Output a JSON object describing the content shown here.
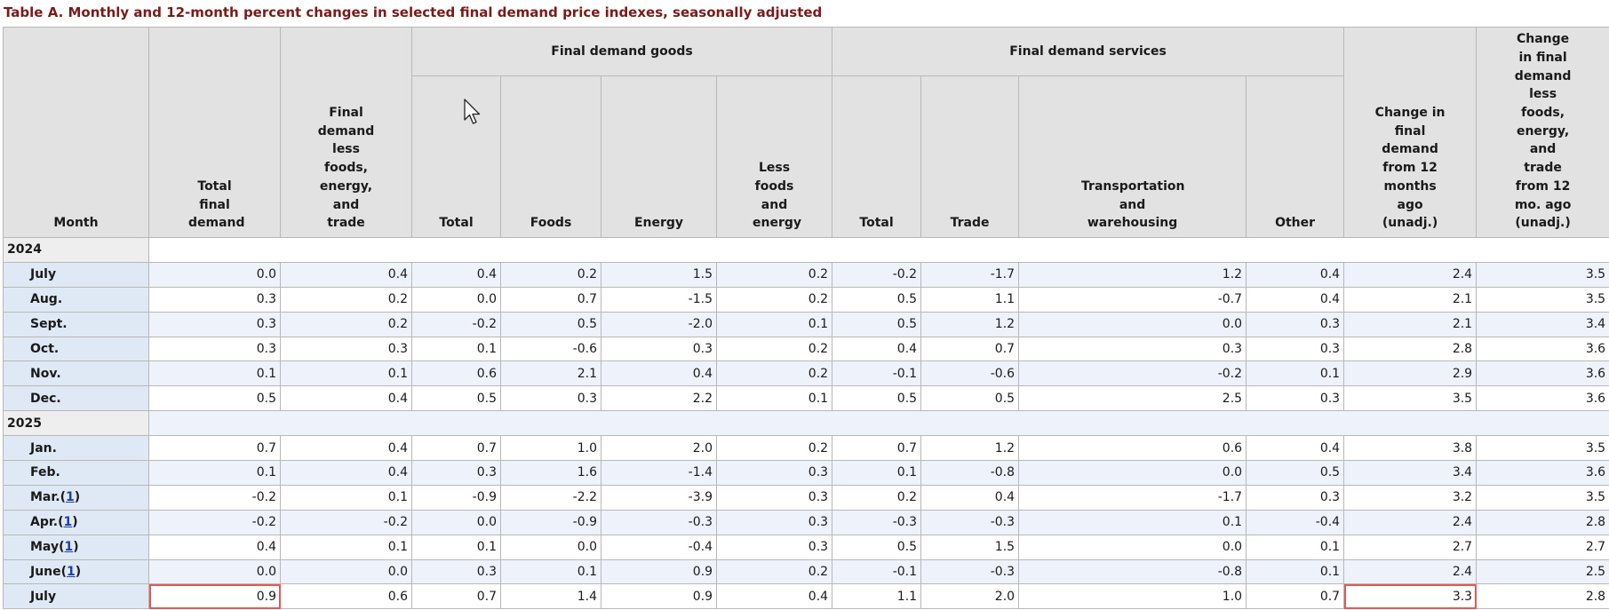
{
  "caption": "Table A. Monthly and 12-month percent changes in selected final demand price indexes, seasonally adjusted",
  "headers": {
    "month": "Month",
    "total_final_demand": "Total final demand",
    "fd_less": "Final demand less foods, energy, and trade",
    "goods_group": "Final demand goods",
    "services_group": "Final demand services",
    "goods_total": "Total",
    "goods_foods": "Foods",
    "goods_energy": "Energy",
    "goods_less": "Less foods and energy",
    "serv_total": "Total",
    "serv_trade": "Trade",
    "serv_transport": "Transportation and warehousing",
    "serv_other": "Other",
    "change12": "Change in final demand from 12 months ago (unadj.)",
    "change12_less": "Change in final demand less foods, energy, and trade from 12 mo. ago (unadj.)"
  },
  "footnote_marker": "1",
  "years": {
    "y2024": "2024",
    "y2025": "2025"
  },
  "rows": [
    {
      "month": "July",
      "fn": false,
      "v": [
        "0.0",
        "0.4",
        "0.4",
        "0.2",
        "1.5",
        "0.2",
        "-0.2",
        "-1.7",
        "1.2",
        "0.4",
        "2.4",
        "3.5"
      ]
    },
    {
      "month": "Aug.",
      "fn": false,
      "v": [
        "0.3",
        "0.2",
        "0.0",
        "0.7",
        "-1.5",
        "0.2",
        "0.5",
        "1.1",
        "-0.7",
        "0.4",
        "2.1",
        "3.5"
      ]
    },
    {
      "month": "Sept.",
      "fn": false,
      "v": [
        "0.3",
        "0.2",
        "-0.2",
        "0.5",
        "-2.0",
        "0.1",
        "0.5",
        "1.2",
        "0.0",
        "0.3",
        "2.1",
        "3.4"
      ]
    },
    {
      "month": "Oct.",
      "fn": false,
      "v": [
        "0.3",
        "0.3",
        "0.1",
        "-0.6",
        "0.3",
        "0.2",
        "0.4",
        "0.7",
        "0.3",
        "0.3",
        "2.8",
        "3.6"
      ]
    },
    {
      "month": "Nov.",
      "fn": false,
      "v": [
        "0.1",
        "0.1",
        "0.6",
        "2.1",
        "0.4",
        "0.2",
        "-0.1",
        "-0.6",
        "-0.2",
        "0.1",
        "2.9",
        "3.6"
      ]
    },
    {
      "month": "Dec.",
      "fn": false,
      "v": [
        "0.5",
        "0.4",
        "0.5",
        "0.3",
        "2.2",
        "0.1",
        "0.5",
        "0.5",
        "2.5",
        "0.3",
        "3.5",
        "3.6"
      ]
    },
    {
      "month": "Jan.",
      "fn": false,
      "v": [
        "0.7",
        "0.4",
        "0.7",
        "1.0",
        "2.0",
        "0.2",
        "0.7",
        "1.2",
        "0.6",
        "0.4",
        "3.8",
        "3.5"
      ]
    },
    {
      "month": "Feb.",
      "fn": false,
      "v": [
        "0.1",
        "0.4",
        "0.3",
        "1.6",
        "-1.4",
        "0.3",
        "0.1",
        "-0.8",
        "0.0",
        "0.5",
        "3.4",
        "3.6"
      ]
    },
    {
      "month": "Mar.",
      "fn": true,
      "v": [
        "-0.2",
        "0.1",
        "-0.9",
        "-2.2",
        "-3.9",
        "0.3",
        "0.2",
        "0.4",
        "-1.7",
        "0.3",
        "3.2",
        "3.5"
      ]
    },
    {
      "month": "Apr.",
      "fn": true,
      "v": [
        "-0.2",
        "-0.2",
        "0.0",
        "-0.9",
        "-0.3",
        "0.3",
        "-0.3",
        "-0.3",
        "0.1",
        "-0.4",
        "2.4",
        "2.8"
      ]
    },
    {
      "month": "May",
      "fn": true,
      "v": [
        "0.4",
        "0.1",
        "0.1",
        "0.0",
        "-0.4",
        "0.3",
        "0.5",
        "1.5",
        "0.0",
        "0.1",
        "2.7",
        "2.7"
      ]
    },
    {
      "month": "June",
      "fn": true,
      "v": [
        "0.0",
        "0.0",
        "0.3",
        "0.1",
        "0.9",
        "0.2",
        "-0.1",
        "-0.3",
        "-0.8",
        "0.1",
        "2.4",
        "2.5"
      ]
    },
    {
      "month": "July",
      "fn": false,
      "v": [
        "0.9",
        "0.6",
        "0.7",
        "1.4",
        "0.9",
        "0.4",
        "1.1",
        "2.0",
        "1.0",
        "0.7",
        "3.3",
        "2.8"
      ]
    }
  ],
  "highlight_color": "#e05a5a"
}
